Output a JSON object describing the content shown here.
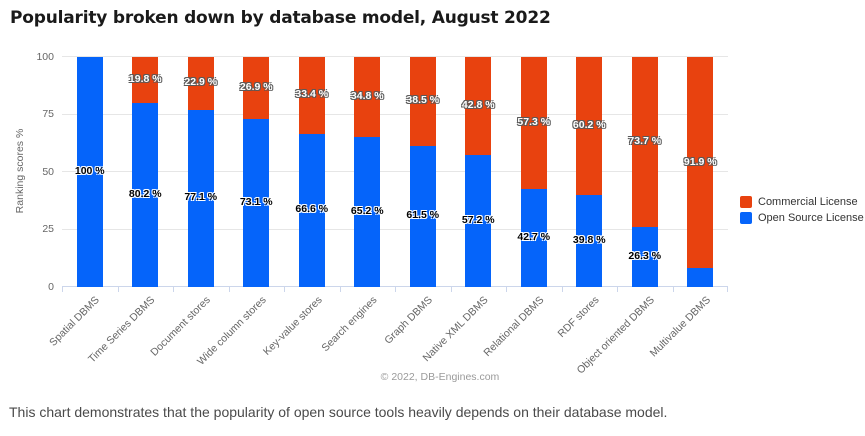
{
  "page": {
    "caption": "This chart demonstrates that the popularity of open source tools heavily depends on their database model."
  },
  "chart_data": {
    "type": "bar",
    "stacked": true,
    "title": "Popularity broken down by database model, August 2022",
    "ylabel": "Ranking scores %",
    "ylim": [
      0,
      100
    ],
    "yticks": [
      0,
      25,
      50,
      75,
      100
    ],
    "grid": true,
    "legend_position": "right",
    "credits": "© 2022, DB-Engines.com",
    "axis_color": "#ccd6eb",
    "grid_color": "#e6e6e6",
    "categories": [
      "Spatial DBMS",
      "Time Series DBMS",
      "Document stores",
      "Wide column stores",
      "Key-value stores",
      "Search engines",
      "Graph DBMS",
      "Native XML DBMS",
      "Relational DBMS",
      "RDF stores",
      "Object oriented DBMS",
      "Multivalue DBMS"
    ],
    "series": [
      {
        "name": "Commercial License",
        "color": "#e8420f",
        "label_style": "on-commercial",
        "values": [
          0,
          19.8,
          22.9,
          26.9,
          33.4,
          34.8,
          38.5,
          42.8,
          57.3,
          60.2,
          73.7,
          91.9
        ]
      },
      {
        "name": "Open Source License",
        "color": "#0564fa",
        "label_style": "on-open-source",
        "values": [
          100,
          80.2,
          77.1,
          73.1,
          66.6,
          65.2,
          61.5,
          57.2,
          42.7,
          39.8,
          26.3,
          8.1
        ]
      }
    ],
    "data_label_suffix": " %",
    "data_label_min_show": 10
  }
}
